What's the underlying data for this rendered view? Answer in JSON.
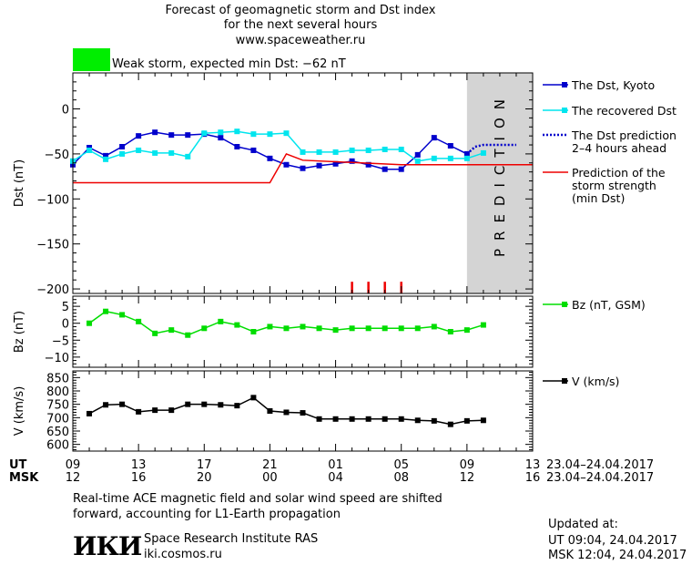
{
  "header": {
    "title_line1": "Forecast of geomagnetic storm and Dst index",
    "title_line2": "for the next several hours",
    "site": "www.spaceweather.ru",
    "storm_label": "Weak storm, expected min Dst: −62 nT",
    "storm_color": "#00ee00"
  },
  "footer": {
    "note_line1": "Real-time ACE magnetic field and solar wind speed are shifted",
    "note_line2": "forward, accounting for L1-Earth propagation",
    "institute": "Space Research Institute RAS",
    "institute_url": "iki.cosmos.ru",
    "logo": "ИКИ",
    "updated_label": "Updated at:",
    "updated_ut": "UT   09:04, 24.04.2017",
    "updated_msk": "MSK 12:04, 24.04.2017"
  },
  "chart_data": {
    "type": "line",
    "x_axis": {
      "ut_label": "UT",
      "msk_label": "MSK",
      "x_range": [
        0,
        28
      ],
      "ut_ticks": [
        {
          "x": 0,
          "label": "09"
        },
        {
          "x": 4,
          "label": "13"
        },
        {
          "x": 8,
          "label": "17"
        },
        {
          "x": 12,
          "label": "21"
        },
        {
          "x": 16,
          "label": "01"
        },
        {
          "x": 20,
          "label": "05"
        },
        {
          "x": 24,
          "label": "09"
        },
        {
          "x": 28,
          "label": "13"
        }
      ],
      "msk_ticks": [
        {
          "x": 0,
          "label": "12"
        },
        {
          "x": 4,
          "label": "16"
        },
        {
          "x": 8,
          "label": "20"
        },
        {
          "x": 12,
          "label": "00"
        },
        {
          "x": 16,
          "label": "04"
        },
        {
          "x": 20,
          "label": "08"
        },
        {
          "x": 24,
          "label": "12"
        },
        {
          "x": 28,
          "label": "16"
        }
      ],
      "date_range_ut": "23.04–24.04.2017",
      "date_range_msk": "23.04–24.04.2017"
    },
    "dst_panel": {
      "ylabel": "Dst (nT)",
      "ylim": [
        -205,
        40
      ],
      "yticks": [
        0,
        -50,
        -100,
        -150,
        -200
      ],
      "prediction_region": {
        "x_start": 24,
        "x_end": 28,
        "label": "PREDICTION",
        "color": "#d4d4d4"
      },
      "series": [
        {
          "name": "The Dst, Kyoto",
          "color": "#0000cc",
          "style": "line-square",
          "x": [
            0,
            1,
            2,
            3,
            4,
            5,
            6,
            7,
            8,
            9,
            10,
            11,
            12,
            13,
            14,
            15,
            16,
            17,
            18,
            19,
            20,
            21,
            22,
            23,
            24
          ],
          "y": [
            -62,
            -43,
            -52,
            -42,
            -30,
            -26,
            -29,
            -29,
            -28,
            -32,
            -42,
            -46,
            -55,
            -62,
            -66,
            -63,
            -61,
            -58,
            -62,
            -67,
            -67,
            -51,
            -32,
            -41,
            -50
          ]
        },
        {
          "name": "The recovered Dst",
          "color": "#00e5ee",
          "style": "line-square",
          "x": [
            0,
            1,
            2,
            3,
            4,
            5,
            6,
            7,
            8,
            9,
            10,
            11,
            12,
            13,
            14,
            15,
            16,
            17,
            18,
            19,
            20,
            21,
            22,
            23,
            24,
            25
          ],
          "y": [
            -58,
            -46,
            -56,
            -50,
            -46,
            -49,
            -49,
            -53,
            -27,
            -26,
            -25,
            -28,
            -28,
            -27,
            -48,
            -48,
            -48,
            -46,
            -46,
            -45,
            -45,
            -58,
            -55,
            -55,
            -55,
            -49
          ]
        },
        {
          "name": "The Dst prediction",
          "sublabel": "2–4 hours ahead",
          "color": "#0000cc",
          "style": "dotted",
          "x": [
            24,
            24.5,
            25,
            26,
            27
          ],
          "y": [
            -50,
            -42,
            -40,
            -40,
            -40
          ]
        },
        {
          "name": "Prediction of the",
          "sublabel": "storm strength",
          "sublabel2": "(min Dst)",
          "color": "#ee0000",
          "style": "line",
          "x": [
            0,
            12,
            13,
            14,
            20,
            28
          ],
          "y": [
            -82,
            -82,
            -50,
            -57,
            -62,
            -62
          ]
        }
      ],
      "markers": {
        "x": [
          17,
          18,
          19,
          20
        ],
        "y_from": -205,
        "y_to": -192,
        "color": "#ee0000"
      }
    },
    "bz_panel": {
      "ylabel": "Bz (nT)",
      "ylim": [
        -13,
        8
      ],
      "yticks": [
        5,
        0,
        -5,
        -10
      ],
      "series": [
        {
          "name": "Bz (nT, GSM)",
          "color": "#00dd00",
          "x": [
            1,
            2,
            3,
            4,
            5,
            6,
            7,
            8,
            9,
            10,
            11,
            12,
            13,
            14,
            15,
            16,
            17,
            18,
            19,
            20,
            21,
            22,
            23,
            24,
            25
          ],
          "y": [
            0,
            3.5,
            2.5,
            0.5,
            -3,
            -2,
            -3.5,
            -1.5,
            0.5,
            -0.5,
            -2.5,
            -1,
            -1.5,
            -1,
            -1.5,
            -2,
            -1.5,
            -1.5,
            -1.5,
            -1.5,
            -1.5,
            -1,
            -2.5,
            -2,
            -0.5
          ]
        }
      ]
    },
    "v_panel": {
      "ylabel": "V (km/s)",
      "ylim": [
        575,
        875
      ],
      "yticks": [
        850,
        800,
        750,
        700,
        650,
        600
      ],
      "series": [
        {
          "name": "V (km/s)",
          "color": "#000000",
          "x": [
            1,
            2,
            3,
            4,
            5,
            6,
            7,
            8,
            9,
            10,
            11,
            12,
            13,
            14,
            15,
            16,
            17,
            18,
            19,
            20,
            21,
            22,
            23,
            24,
            25
          ],
          "y": [
            715,
            748,
            750,
            722,
            728,
            728,
            750,
            750,
            748,
            745,
            775,
            725,
            720,
            718,
            695,
            695,
            695,
            695,
            695,
            695,
            690,
            688,
            675,
            688,
            690
          ]
        }
      ]
    }
  }
}
